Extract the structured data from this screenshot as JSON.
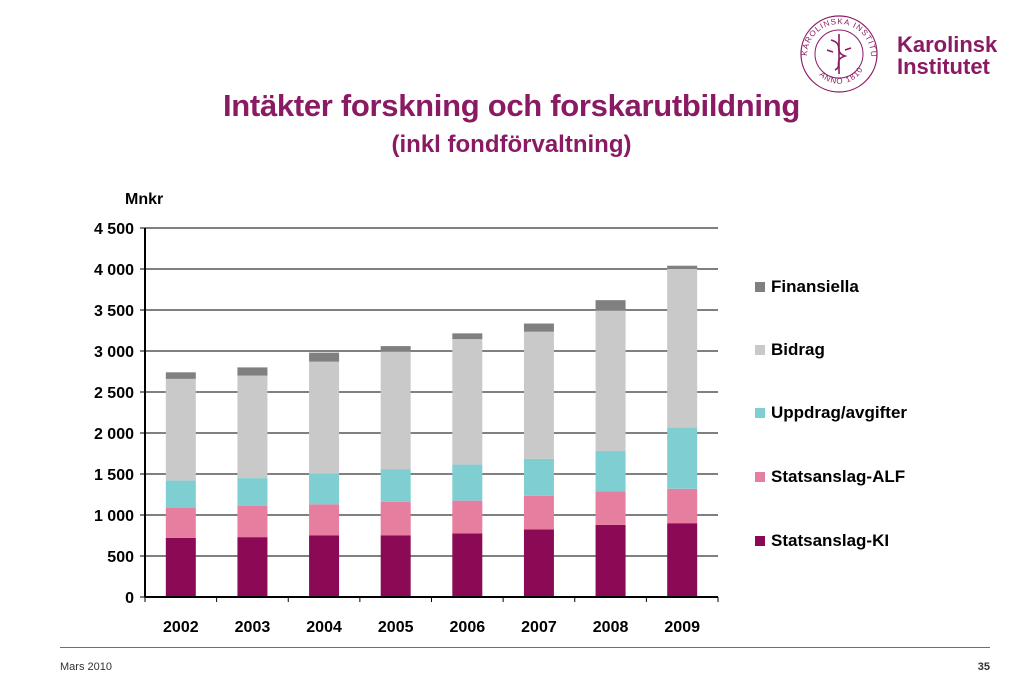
{
  "logo": {
    "ring_text": "KAROLINSKA INSTITUTET",
    "year_text": "ANNO 1810",
    "name_line1": "Karolinska",
    "name_line2": "Institutet",
    "color": "#8b1a64"
  },
  "colors": {
    "title": "#8b1a64",
    "footer_line": "#a9507f"
  },
  "footer": {
    "date": "Mars 2010",
    "page": "35"
  },
  "chart_data": {
    "type": "bar",
    "stacked": true,
    "title": "Intäkter forskning och forskarutbildning",
    "subtitle": "(inkl fondförvaltning)",
    "unit_label": "Mnkr",
    "ylim": [
      0,
      4500
    ],
    "yticks": [
      0,
      500,
      1000,
      1500,
      2000,
      2500,
      3000,
      3500,
      4000,
      4500
    ],
    "ytick_labels": [
      "0",
      "500",
      "1 000",
      "1 500",
      "2 000",
      "2 500",
      "3 000",
      "3 500",
      "4 000",
      "4 500"
    ],
    "grid": true,
    "legend_position": "right",
    "categories": [
      "2002",
      "2003",
      "2004",
      "2005",
      "2006",
      "2007",
      "2008",
      "2009"
    ],
    "series": [
      {
        "name": "Statsanslag-KI",
        "color": "#8b0a55",
        "values": [
          720,
          730,
          750,
          750,
          775,
          825,
          880,
          900
        ]
      },
      {
        "name": "Statsanslag-ALF",
        "color": "#e67e9f",
        "values": [
          370,
          380,
          380,
          410,
          400,
          410,
          410,
          420
        ]
      },
      {
        "name": "Uppdrag/avgifter",
        "color": "#7fcfd2",
        "values": [
          330,
          340,
          380,
          400,
          440,
          450,
          490,
          750
        ]
      },
      {
        "name": "Bidrag",
        "color": "#c9c9c9",
        "values": [
          1240,
          1250,
          1360,
          1430,
          1530,
          1550,
          1710,
          1930
        ]
      },
      {
        "name": "Finansiella",
        "color": "#808080",
        "values": [
          80,
          100,
          110,
          70,
          70,
          100,
          130,
          40
        ]
      }
    ]
  }
}
